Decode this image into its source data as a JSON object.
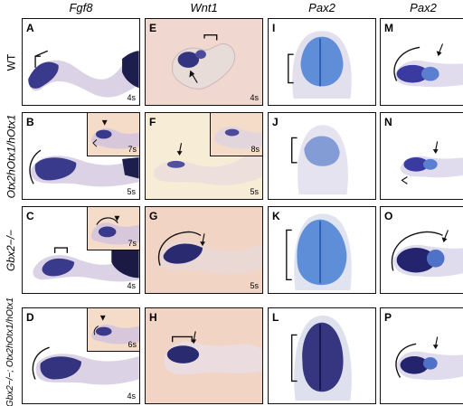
{
  "headers": {
    "fgf8": "Fgf8",
    "wnt1": "Wnt1",
    "pax2_a": "Pax2",
    "pax2_b": "Pax2"
  },
  "row_labels": {
    "wt": "WT",
    "otx2": "Otx2hOtx1/hOtx1",
    "gbx2": "Gbx2−/−",
    "double": "Gbx2−/−; Otx2hOtx1/hOtx1"
  },
  "panels": {
    "A": {
      "letter": "A",
      "stage": "4s"
    },
    "B": {
      "letter": "B",
      "stage": "5s",
      "inset_stage": "7s"
    },
    "C": {
      "letter": "C",
      "stage": "4s",
      "inset_stage": "7s"
    },
    "D": {
      "letter": "D",
      "stage": "4s",
      "inset_stage": "6s"
    },
    "E": {
      "letter": "E",
      "stage": "4s"
    },
    "F": {
      "letter": "F",
      "stage": "5s",
      "inset_stage": "8s"
    },
    "G": {
      "letter": "G",
      "stage": "5s"
    },
    "H": {
      "letter": "H",
      "stage": ""
    },
    "I": {
      "letter": "I"
    },
    "J": {
      "letter": "J"
    },
    "K": {
      "letter": "K"
    },
    "L": {
      "letter": "L"
    },
    "M": {
      "letter": "M"
    },
    "N": {
      "letter": "N"
    },
    "O": {
      "letter": "O"
    },
    "P": {
      "letter": "P"
    }
  },
  "colors": {
    "stain_dark": "#2a2a7a",
    "stain_blue": "#3b6fd0",
    "tissue": "#d9cfe0",
    "pink_bg": "#f0d7cf"
  }
}
